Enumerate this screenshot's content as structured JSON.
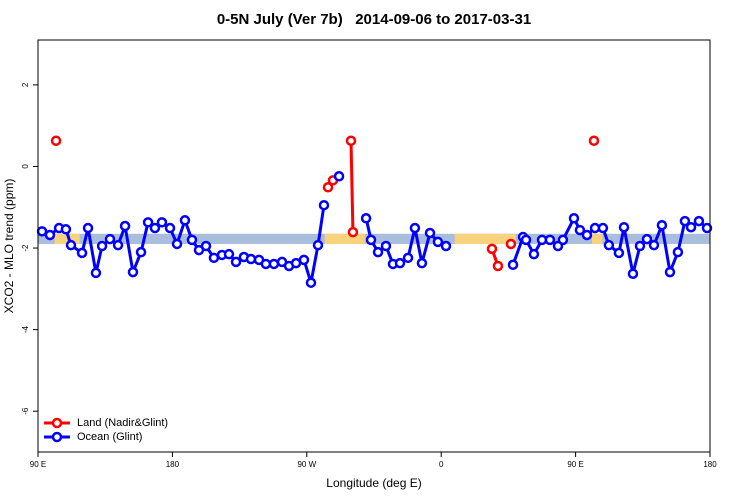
{
  "chart_data": {
    "type": "line",
    "title": "0-5N July (Ver 7b)   2014-09-06 to 2017-03-31",
    "xlabel": "Longitude (deg E)",
    "ylabel": "XCO2 - MLO trend (ppm)",
    "xlim": [
      90,
      540
    ],
    "ylim": [
      -7,
      3.1
    ],
    "xticks": [
      {
        "value": 90,
        "label": "90 E"
      },
      180,
      {
        "value": 270,
        "label": "90 W"
      },
      {
        "value": 360,
        "label": "0"
      },
      {
        "value": 450,
        "label": "90 E"
      },
      {
        "value": 540,
        "label": "180"
      }
    ],
    "yticks": [
      2,
      0,
      -2,
      -4,
      -6
    ],
    "legend": "bottom-left",
    "band": {
      "ylim": [
        -1.9,
        -1.65
      ],
      "color": "#a9bedc",
      "land_color": "#f8d27c",
      "land_ranges": [
        [
          101,
          118
        ],
        [
          282,
          309
        ],
        [
          369,
          410
        ],
        [
          461,
          468
        ]
      ]
    },
    "series": [
      {
        "name": "Land (Nadir&Glint)",
        "color": "#ff0000",
        "x": [
          102.1,
          null,
          284.2,
          287.5,
          null,
          299.6,
          300.9,
          null,
          394.0,
          398.0,
          null,
          406.7,
          null,
          462.3
        ],
        "values": [
          0.63,
          null,
          -0.51,
          -0.34,
          null,
          0.63,
          -1.61,
          null,
          -2.02,
          -2.44,
          null,
          -1.9,
          null,
          0.63
        ]
      },
      {
        "name": "Ocean (Glint)",
        "color": "#0000ff",
        "x": [
          92.7,
          98.0,
          104.1,
          108.7,
          112.1,
          119.5,
          123.5,
          128.8,
          132.9,
          138.2,
          143.6,
          148.3,
          153.6,
          159.0,
          163.7,
          168.3,
          173.0,
          178.4,
          183.1,
          188.4,
          193.1,
          197.8,
          202.5,
          207.8,
          213.2,
          217.9,
          222.6,
          227.9,
          232.6,
          238.0,
          242.6,
          248.0,
          253.4,
          258.1,
          262.8,
          268.1,
          272.8,
          277.5,
          281.5,
          null,
          291.6,
          null,
          309.7,
          313.0,
          317.7,
          323.0,
          327.7,
          332.4,
          337.8,
          342.4,
          347.1,
          352.5,
          357.8,
          363.2,
          null,
          408.1,
          414.8,
          416.8,
          422.1,
          427.5,
          432.8,
          438.2,
          441.5,
          448.9,
          452.9,
          457.6,
          463.0,
          468.3,
          472.3,
          479.0,
          482.4,
          488.4,
          493.1,
          497.8,
          502.5,
          507.8,
          513.2,
          518.5,
          523.2,
          527.3,
          532.6,
          538.0
        ],
        "values": [
          -1.59,
          -1.68,
          -1.51,
          -1.54,
          -1.93,
          -2.12,
          -1.51,
          -2.61,
          -1.95,
          -1.78,
          -1.93,
          -1.46,
          -2.59,
          -2.1,
          -1.37,
          -1.51,
          -1.37,
          -1.51,
          -1.9,
          -1.32,
          -1.8,
          -2.05,
          -1.95,
          -2.24,
          -2.17,
          -2.15,
          -2.34,
          -2.22,
          -2.27,
          -2.29,
          -2.39,
          -2.39,
          -2.34,
          -2.44,
          -2.37,
          -2.29,
          -2.85,
          -1.93,
          -0.95,
          null,
          -0.24,
          null,
          -1.27,
          -1.8,
          -2.1,
          -1.95,
          -2.39,
          -2.37,
          -2.24,
          -1.51,
          -2.37,
          -1.63,
          -1.85,
          -1.95,
          null,
          -2.41,
          -1.73,
          -1.8,
          -2.15,
          -1.8,
          -1.8,
          -1.95,
          -1.8,
          -1.27,
          -1.56,
          -1.68,
          -1.51,
          -1.51,
          -1.93,
          -2.12,
          -1.49,
          -2.63,
          -1.95,
          -1.78,
          -1.93,
          -1.44,
          -2.59,
          -2.1,
          -1.34,
          -1.49,
          -1.34,
          -1.51
        ]
      }
    ]
  }
}
